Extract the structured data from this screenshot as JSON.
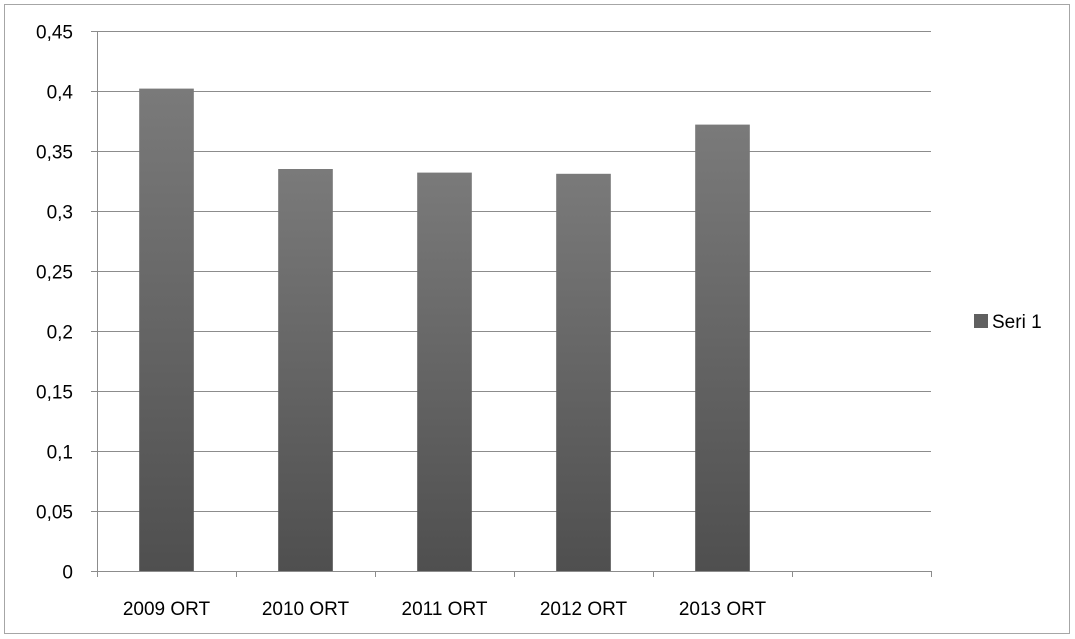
{
  "chart_data": {
    "type": "bar",
    "title": "",
    "xlabel": "",
    "ylabel": "",
    "categories": [
      "2009 ORT",
      "2010 ORT",
      "2011 ORT",
      "2012 ORT",
      "2013 ORT",
      ""
    ],
    "series": [
      {
        "name": "Seri 1",
        "values": [
          0.402,
          0.335,
          0.332,
          0.331,
          0.372,
          null
        ],
        "color": "#606060"
      }
    ],
    "ylim": [
      0,
      0.45
    ],
    "yticks": [
      "0",
      "0,05",
      "0,1",
      "0,15",
      "0,2",
      "0,25",
      "0,3",
      "0,35",
      "0,4",
      "0,45"
    ],
    "grid": true,
    "legend_position": "right"
  }
}
